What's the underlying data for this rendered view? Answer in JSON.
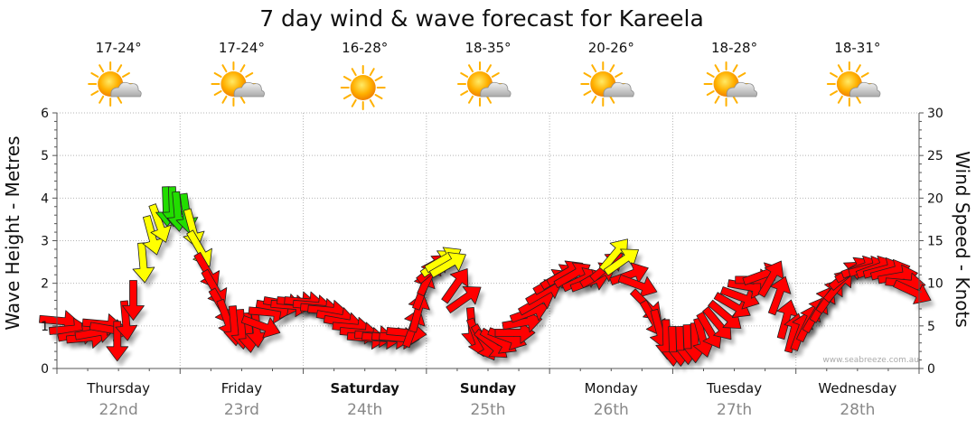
{
  "chart_data": {
    "type": "scatter",
    "title": "7 day wind & wave forecast for Kareela",
    "ylabel": "Wave Height - Metres",
    "y2label": "Wind Speed - Knots",
    "ylim": [
      0,
      6
    ],
    "y2lim": [
      0,
      30
    ],
    "yticks": [
      "0",
      "1",
      "2",
      "3",
      "4",
      "5",
      "6"
    ],
    "y2ticks": [
      "0",
      "5",
      "10",
      "15",
      "20",
      "25",
      "30"
    ],
    "credit": "www.seabreeze.com.au",
    "days": [
      {
        "name": "Thursday",
        "date": "22nd",
        "temp": "17-24°",
        "weather": "partly-cloudy",
        "bold": false
      },
      {
        "name": "Friday",
        "date": "23rd",
        "temp": "17-24°",
        "weather": "partly-cloudy",
        "bold": false
      },
      {
        "name": "Saturday",
        "date": "24th",
        "temp": "16-28°",
        "weather": "sunny",
        "bold": true
      },
      {
        "name": "Sunday",
        "date": "25th",
        "temp": "18-35°",
        "weather": "partly-cloudy",
        "bold": true
      },
      {
        "name": "Monday",
        "date": "26th",
        "temp": "20-26°",
        "weather": "partly-cloudy",
        "bold": false
      },
      {
        "name": "Tuesday",
        "date": "27th",
        "temp": "18-28°",
        "weather": "partly-cloudy",
        "bold": false
      },
      {
        "name": "Wednesday",
        "date": "28th",
        "temp": "18-31°",
        "weather": "partly-cloudy",
        "bold": false
      }
    ],
    "colors": {
      "low": "#ff0000",
      "mid": "#ffff00",
      "high": "#22dd00",
      "outline": "#222222"
    },
    "wind_series": {
      "name": "Wind Speed (knots) and direction",
      "x_unit": "days from start",
      "points": [
        [
          0.02,
          5.6,
          95
        ],
        [
          0.1,
          4.6,
          85
        ],
        [
          0.17,
          4.0,
          80
        ],
        [
          0.24,
          3.6,
          85
        ],
        [
          0.31,
          4.2,
          80
        ],
        [
          0.37,
          5.2,
          95
        ],
        [
          0.43,
          4.6,
          100
        ],
        [
          0.49,
          3.2,
          180
        ],
        [
          0.56,
          5.6,
          175
        ],
        [
          0.62,
          8.0,
          180
        ],
        [
          0.7,
          12.4,
          175
        ],
        [
          0.77,
          15.6,
          165
        ],
        [
          0.83,
          17.0,
          160
        ],
        [
          0.89,
          19.0,
          178
        ],
        [
          0.94,
          19.0,
          178
        ],
        [
          0.98,
          18.4,
          175
        ],
        [
          1.05,
          18.2,
          172
        ],
        [
          1.1,
          16.4,
          165
        ],
        [
          1.16,
          14.0,
          150
        ],
        [
          1.22,
          11.4,
          150
        ],
        [
          1.28,
          9.4,
          150
        ],
        [
          1.34,
          7.2,
          150
        ],
        [
          1.38,
          5.8,
          160
        ],
        [
          1.44,
          5.0,
          175
        ],
        [
          1.5,
          4.6,
          175
        ],
        [
          1.56,
          4.2,
          175
        ],
        [
          1.62,
          4.8,
          175
        ],
        [
          1.66,
          5.0,
          110
        ],
        [
          1.72,
          6.6,
          95
        ],
        [
          1.78,
          7.2,
          100
        ],
        [
          1.84,
          7.6,
          100
        ],
        [
          1.9,
          7.4,
          95
        ],
        [
          1.95,
          7.8,
          95
        ],
        [
          2.01,
          7.8,
          95
        ],
        [
          2.08,
          7.4,
          95
        ],
        [
          2.14,
          7.0,
          95
        ],
        [
          2.2,
          6.8,
          95
        ],
        [
          2.27,
          6.0,
          100
        ],
        [
          2.33,
          5.4,
          100
        ],
        [
          2.4,
          4.8,
          95
        ],
        [
          2.46,
          4.2,
          95
        ],
        [
          2.52,
          3.6,
          95
        ],
        [
          2.58,
          3.8,
          95
        ],
        [
          2.64,
          3.6,
          95
        ],
        [
          2.72,
          3.6,
          95
        ],
        [
          2.78,
          3.6,
          95
        ],
        [
          2.84,
          4.2,
          95
        ],
        [
          2.89,
          4.8,
          20
        ],
        [
          2.93,
          6.6,
          15
        ],
        [
          2.97,
          9.2,
          20
        ],
        [
          3.02,
          10.8,
          25
        ],
        [
          3.06,
          11.8,
          50
        ],
        [
          3.1,
          12.4,
          55
        ],
        [
          3.14,
          12.8,
          60
        ],
        [
          3.18,
          12.2,
          60
        ],
        [
          3.24,
          9.8,
          35
        ],
        [
          3.31,
          8.2,
          55
        ],
        [
          3.37,
          4.8,
          175
        ],
        [
          3.41,
          3.6,
          160
        ],
        [
          3.47,
          3.0,
          150
        ],
        [
          3.53,
          2.8,
          130
        ],
        [
          3.59,
          3.2,
          120
        ],
        [
          3.66,
          3.6,
          110
        ],
        [
          3.72,
          4.2,
          90
        ],
        [
          3.78,
          5.4,
          80
        ],
        [
          3.84,
          6.6,
          70
        ],
        [
          3.9,
          7.8,
          60
        ],
        [
          3.96,
          9.0,
          60
        ],
        [
          4.02,
          10.2,
          60
        ],
        [
          4.08,
          10.8,
          60
        ],
        [
          4.13,
          11.2,
          60
        ],
        [
          4.19,
          11.0,
          60
        ],
        [
          4.26,
          10.4,
          65
        ],
        [
          4.33,
          10.2,
          70
        ],
        [
          4.4,
          11.0,
          60
        ],
        [
          4.47,
          12.0,
          50
        ],
        [
          4.53,
          13.4,
          40
        ],
        [
          4.59,
          12.6,
          55
        ],
        [
          4.65,
          11.0,
          70
        ],
        [
          4.72,
          9.8,
          110
        ],
        [
          4.79,
          7.4,
          135
        ],
        [
          4.84,
          5.8,
          150
        ],
        [
          4.89,
          4.6,
          165
        ],
        [
          4.95,
          3.4,
          178
        ],
        [
          5.0,
          2.6,
          178
        ],
        [
          5.06,
          2.6,
          178
        ],
        [
          5.12,
          2.8,
          178
        ],
        [
          5.18,
          3.0,
          178
        ],
        [
          5.24,
          3.6,
          165
        ],
        [
          5.3,
          4.4,
          150
        ],
        [
          5.37,
          5.2,
          140
        ],
        [
          5.43,
          6.2,
          130
        ],
        [
          5.49,
          7.4,
          120
        ],
        [
          5.55,
          8.4,
          110
        ],
        [
          5.61,
          9.6,
          100
        ],
        [
          5.67,
          10.4,
          90
        ],
        [
          5.73,
          11.0,
          70
        ],
        [
          5.8,
          10.6,
          30
        ],
        [
          5.86,
          8.6,
          20
        ],
        [
          5.92,
          5.8,
          15
        ],
        [
          5.98,
          4.2,
          15
        ],
        [
          6.04,
          4.4,
          20
        ],
        [
          6.1,
          5.4,
          25
        ],
        [
          6.16,
          6.4,
          30
        ],
        [
          6.22,
          7.6,
          30
        ],
        [
          6.28,
          8.6,
          35
        ],
        [
          6.35,
          9.8,
          40
        ],
        [
          6.41,
          11.0,
          50
        ],
        [
          6.47,
          11.6,
          60
        ],
        [
          6.53,
          11.8,
          70
        ],
        [
          6.59,
          11.8,
          75
        ],
        [
          6.65,
          11.8,
          70
        ],
        [
          6.71,
          11.6,
          75
        ],
        [
          6.77,
          11.4,
          75
        ],
        [
          6.83,
          10.8,
          80
        ],
        [
          6.89,
          10.0,
          95
        ],
        [
          6.95,
          9.0,
          115
        ]
      ]
    }
  }
}
